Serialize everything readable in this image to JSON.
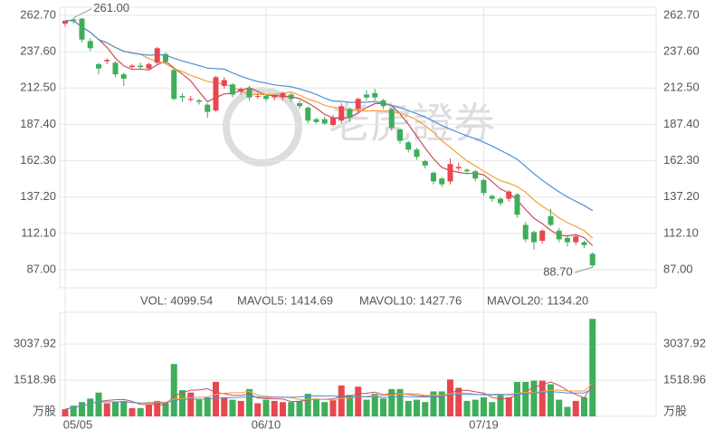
{
  "chart_data": [
    {
      "type": "candlestick",
      "categories": [
        "05/05",
        null,
        null,
        null,
        null,
        null,
        null,
        null,
        null,
        null,
        null,
        null,
        null,
        null,
        null,
        null,
        null,
        null,
        null,
        null,
        null,
        null,
        null,
        null,
        "06/10",
        null,
        null,
        null,
        null,
        null,
        null,
        null,
        null,
        null,
        null,
        null,
        null,
        null,
        null,
        null,
        null,
        null,
        null,
        null,
        null,
        null,
        null,
        null,
        null,
        null,
        "07/19",
        null,
        null,
        null,
        null,
        null,
        null,
        null,
        null,
        null,
        null,
        null,
        null,
        null
      ],
      "open": [
        257,
        260,
        260.5,
        245,
        229,
        231,
        230,
        222,
        227,
        228,
        226,
        230,
        236,
        225,
        207,
        205,
        204,
        201,
        197,
        214,
        215,
        210,
        212,
        207,
        207,
        206,
        206,
        208,
        202,
        199,
        191,
        191,
        187,
        190,
        198,
        198,
        208,
        209,
        204,
        198,
        184,
        175,
        170,
        162,
        154,
        150,
        148,
        157,
        156,
        155,
        149,
        138,
        136,
        136,
        139,
        118,
        113,
        107,
        124,
        114,
        109,
        106,
        106,
        98
      ],
      "high": [
        259,
        261,
        261,
        247,
        230,
        233,
        231,
        223,
        229,
        230,
        230,
        241,
        237,
        226,
        209,
        207,
        205,
        202,
        221,
        220,
        216,
        213,
        214,
        209,
        208,
        208,
        210,
        209,
        204,
        200,
        192,
        193,
        194,
        202,
        199,
        206,
        211,
        212,
        205,
        199,
        185,
        176,
        171,
        163,
        155,
        151,
        164,
        161,
        157,
        156,
        150,
        139,
        137,
        142,
        140,
        120,
        114,
        115,
        129,
        116,
        110,
        111,
        107,
        99
      ],
      "low": [
        255,
        257,
        244,
        238,
        222,
        229,
        220,
        214,
        226,
        226,
        225,
        229,
        229,
        204,
        203,
        203,
        201,
        192,
        196,
        212,
        206,
        208,
        204,
        205,
        203,
        204,
        204,
        203,
        198,
        188,
        188,
        187,
        186,
        188,
        189,
        196,
        204,
        204,
        198,
        183,
        174,
        168,
        163,
        157,
        146,
        144,
        146,
        155,
        153,
        148,
        138,
        134,
        131,
        134,
        123,
        106,
        101,
        105,
        117,
        106,
        103,
        104,
        102,
        88.7
      ],
      "close": [
        259,
        259,
        246,
        240,
        226,
        232,
        222,
        219,
        228,
        227,
        229,
        240,
        231,
        205,
        206,
        205,
        203,
        196,
        220,
        218,
        208,
        212,
        206,
        207,
        205,
        207,
        209,
        205,
        200,
        190,
        189,
        188,
        192,
        200,
        192,
        205,
        206,
        206,
        200,
        185,
        176,
        170,
        165,
        159,
        148,
        146,
        160,
        158,
        155,
        150,
        140,
        136,
        133,
        141,
        125,
        108,
        106,
        114,
        118,
        108,
        106,
        110,
        104,
        90
      ],
      "up_color": "#e8474f",
      "down_color": "#3fae5a",
      "moving_averages": [
        {
          "window": 5,
          "color": "#cc4a5e"
        },
        {
          "window": 10,
          "color": "#f5a03c"
        },
        {
          "window": 20,
          "color": "#4a90d6"
        }
      ],
      "ylim": [
        87,
        262.7
      ],
      "yticks": [
        {
          "value": 262.7,
          "label": "262.70"
        },
        {
          "value": 237.6,
          "label": "237.60"
        },
        {
          "value": 212.5,
          "label": "212.50"
        },
        {
          "value": 187.4,
          "label": "187.40"
        },
        {
          "value": 162.3,
          "label": "162.30"
        },
        {
          "value": 137.2,
          "label": "137.20"
        },
        {
          "value": 112.1,
          "label": "112.10"
        },
        {
          "value": 87,
          "label": "87.00"
        }
      ],
      "annotations": [
        {
          "value": 261,
          "label": "261.00"
        },
        {
          "value": 88.7,
          "label": "88.70"
        }
      ],
      "watermark": "老虎證券"
    },
    {
      "type": "bar",
      "legend": [
        {
          "text": "VOL: 4099.54",
          "color": "#999999"
        },
        {
          "text": "MAVOL5: 1414.69",
          "color": "#cc4a5e"
        },
        {
          "text": "MAVOL10: 1427.76",
          "color": "#f5a03c"
        },
        {
          "text": "MAVOL20: 1134.20",
          "color": "#4a90d6"
        }
      ],
      "values": [
        300,
        450,
        600,
        750,
        1000,
        550,
        600,
        650,
        350,
        350,
        500,
        650,
        550,
        2200,
        1100,
        1000,
        700,
        800,
        1450,
        800,
        700,
        650,
        1150,
        550,
        700,
        650,
        600,
        600,
        650,
        950,
        750,
        600,
        700,
        1300,
        900,
        1250,
        700,
        950,
        750,
        1150,
        1150,
        650,
        700,
        600,
        1050,
        1050,
        1550,
        1200,
        650,
        700,
        800,
        600,
        900,
        800,
        1450,
        1450,
        1500,
        1500,
        1350,
        700,
        400,
        650,
        800,
        4099.54
      ],
      "ylim": [
        0,
        4300
      ],
      "yticks": [
        {
          "value": 0,
          "label": "万股"
        },
        1518.96,
        3037.92
      ]
    }
  ]
}
